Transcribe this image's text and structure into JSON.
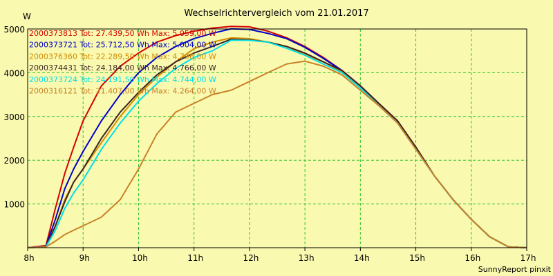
{
  "chart_data": {
    "type": "line",
    "title": "Wechselrichtervergleich vom 21.01.2017",
    "ylabel": "W",
    "xlabel": "",
    "footer": "SunnyReport pinxit",
    "x_ticks": [
      "8h",
      "9h",
      "10h",
      "11h",
      "12h",
      "13h",
      "14h",
      "15h",
      "16h",
      "17h"
    ],
    "y_ticks": [
      1000,
      2000,
      3000,
      4000,
      5000
    ],
    "xlim": [
      8,
      17
    ],
    "ylim": [
      0,
      5000
    ],
    "grid": true,
    "legend_position": "top-left",
    "series": [
      {
        "name": "2000373813 Tot: 27.439,50 Wh Max: 5.059,00 W",
        "color": "#d40000",
        "x": [
          8.33,
          8.5,
          8.67,
          8.83,
          9.0,
          9.33,
          9.67,
          10.0,
          10.33,
          10.67,
          11.0,
          11.33,
          11.67,
          12.0,
          12.33,
          12.67,
          13.0,
          13.33,
          13.67,
          14.0,
          14.33,
          14.67,
          15.0,
          15.33,
          15.67,
          16.0,
          16.33,
          16.67
        ],
        "y": [
          50,
          900,
          1700,
          2300,
          2900,
          3700,
          4150,
          4450,
          4700,
          4850,
          4950,
          5020,
          5059,
          5050,
          4950,
          4800,
          4600,
          4350,
          4050,
          3700,
          3300,
          2900,
          2300,
          1650,
          1100,
          650,
          250,
          20
        ]
      },
      {
        "name": "2000373721 Tot: 25.712,50 Wh Max: 5.004,00 W",
        "color": "#0000c8",
        "x": [
          8.33,
          8.5,
          8.67,
          8.83,
          9.0,
          9.33,
          9.67,
          10.0,
          10.33,
          10.67,
          11.0,
          11.33,
          11.67,
          12.0,
          12.33,
          12.67,
          13.0,
          13.33,
          13.67,
          14.0,
          14.33,
          14.67,
          15.0,
          15.33,
          15.67,
          16.0,
          16.33,
          16.67
        ],
        "y": [
          30,
          650,
          1350,
          1800,
          2200,
          2900,
          3500,
          4000,
          4350,
          4600,
          4780,
          4900,
          5004,
          4990,
          4900,
          4780,
          4580,
          4330,
          4050,
          3700,
          3300,
          2900,
          2300,
          1650,
          1100,
          650,
          250,
          20
        ]
      },
      {
        "name": "2000376360 Tot: 22.289,50 Wh Max: 4.796,00 W",
        "color": "#d48c00",
        "x": [
          8.33,
          8.5,
          8.67,
          8.83,
          9.0,
          9.33,
          9.67,
          10.0,
          10.33,
          10.67,
          11.0,
          11.33,
          11.67,
          12.0,
          12.33,
          12.67,
          13.0,
          13.33,
          13.67,
          14.0,
          14.33,
          14.67,
          15.0,
          15.33,
          15.67,
          16.0,
          16.33,
          16.67
        ],
        "y": [
          20,
          500,
          1100,
          1500,
          1800,
          2400,
          3000,
          3500,
          3900,
          4250,
          4550,
          4700,
          4796,
          4780,
          4700,
          4600,
          4420,
          4250,
          4020,
          3650,
          3300,
          2900,
          2300,
          1650,
          1100,
          650,
          250,
          20
        ]
      },
      {
        "name": "2000374431 Tot: 24.184,00 Wh Max: 4.766,00 W",
        "color": "#3c2424",
        "x": [
          8.33,
          8.5,
          8.67,
          8.83,
          9.0,
          9.33,
          9.67,
          10.0,
          10.33,
          10.67,
          11.0,
          11.33,
          11.67,
          12.0,
          12.33,
          12.67,
          13.0,
          13.33,
          13.67,
          14.0,
          14.33,
          14.67,
          15.0,
          15.33,
          15.67,
          16.0,
          16.33,
          16.67
        ],
        "y": [
          20,
          500,
          1050,
          1500,
          1800,
          2500,
          3100,
          3550,
          3950,
          4250,
          4450,
          4600,
          4766,
          4750,
          4700,
          4600,
          4450,
          4250,
          4050,
          3700,
          3300,
          2900,
          2300,
          1650,
          1100,
          650,
          250,
          20
        ]
      },
      {
        "name": "2000373724 Tot: 24.191,50 Wh Max: 4.744,00 W",
        "color": "#00e0e8",
        "x": [
          8.33,
          8.5,
          8.67,
          8.83,
          9.0,
          9.33,
          9.67,
          10.0,
          10.33,
          10.67,
          11.0,
          11.33,
          11.67,
          12.0,
          12.33,
          12.67,
          13.0,
          13.33,
          13.67,
          14.0,
          14.33,
          14.67,
          15.0,
          15.33,
          15.67,
          16.0,
          16.33,
          16.67
        ],
        "y": [
          20,
          400,
          900,
          1250,
          1550,
          2250,
          2850,
          3350,
          3750,
          4100,
          4350,
          4500,
          4744,
          4740,
          4700,
          4560,
          4400,
          4200,
          4000,
          3650,
          3250,
          2850,
          2250,
          1650,
          1100,
          650,
          250,
          20
        ]
      },
      {
        "name": "2000316121 Tot: 21.407,00 Wh Max: 4.264,00 W",
        "color": "#c88228",
        "x": [
          8.33,
          8.5,
          8.67,
          8.83,
          9.0,
          9.33,
          9.67,
          10.0,
          10.33,
          10.67,
          11.0,
          11.33,
          11.67,
          12.0,
          12.33,
          12.67,
          13.0,
          13.33,
          13.67,
          14.0,
          14.33,
          14.67,
          15.0,
          15.33,
          15.67,
          16.0,
          16.33,
          16.67
        ],
        "y": [
          20,
          150,
          300,
          400,
          500,
          700,
          1100,
          1800,
          2600,
          3100,
          3300,
          3500,
          3600,
          3800,
          4000,
          4200,
          4264,
          4150,
          3950,
          3600,
          3250,
          2850,
          2250,
          1650,
          1100,
          650,
          250,
          20
        ]
      }
    ]
  }
}
